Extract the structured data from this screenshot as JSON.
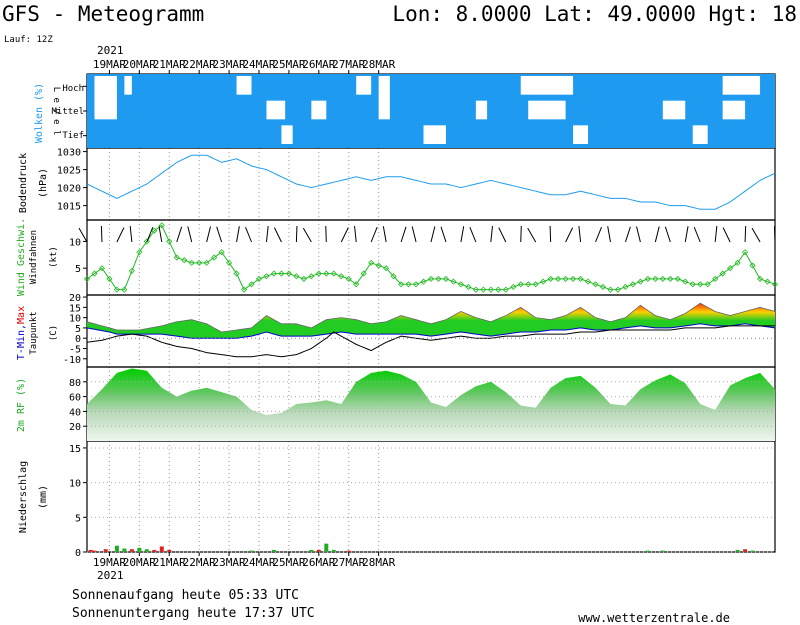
{
  "header": {
    "title": "GFS - Meteogramm",
    "location": "Lon: 8.0000 Lat: 49.0000 Hgt: 18",
    "run": "Lauf: 12Z"
  },
  "dates": {
    "year": "2021",
    "labels": [
      "19MAR",
      "20MAR",
      "21MAR",
      "22MAR",
      "23MAR",
      "24MAR",
      "25MAR",
      "26MAR",
      "27MAR",
      "28MAR"
    ]
  },
  "panels": {
    "clouds": {
      "label": "Wolken (%)",
      "level_word": "L e v e l",
      "levels": [
        "Hoch",
        "Mittel",
        "Tief"
      ]
    },
    "pressure": {
      "label": "Bodendruck",
      "unit": "(hPa)"
    },
    "wind": {
      "label": "Wind Geschwi.",
      "sub": "Windfahnen",
      "unit": "(kt)"
    },
    "temp": {
      "label_tmin": "T-Min,",
      "label_max": "Max",
      "sub": "Taupunkt",
      "unit": "(C)"
    },
    "rh": {
      "label": "2m RF (%)"
    },
    "precip": {
      "label": "Niederschlag",
      "unit": "(mm)"
    }
  },
  "footer": {
    "sunrise": "Sonnenaufgang heute 05:33 UTC",
    "sunset": "Sonnenuntergang heute 17:37 UTC",
    "site": "www.wetterzentrale.de"
  },
  "colors": {
    "cloud_fill": "#1E9BF0",
    "pressure_line": "#1E9BF0",
    "wind_line": "#22BB22",
    "rh_top": "#00C800",
    "rh_bottom": "#E8F4E8",
    "temp_low": "#00C800",
    "temp_mid": "#FFD700",
    "temp_high": "#FF4000",
    "tmin_line": "#0000CC",
    "dew_line": "#000000",
    "precip_green": "#22AA22",
    "precip_red": "#DD2222"
  },
  "chart_data": {
    "type": "line",
    "x_start": "2021-03-18 18Z",
    "x_end": "2021-03-28 18Z",
    "x_step_hours": 3,
    "pressure": {
      "ylabel": "Bodendruck (hPa)",
      "ylim": [
        1011,
        1031
      ],
      "ticks": [
        1015,
        1020,
        1025,
        1030
      ],
      "keys": [
        [
          0,
          1021
        ],
        [
          4,
          1019
        ],
        [
          8,
          1017
        ],
        [
          12,
          1019
        ],
        [
          16,
          1021
        ],
        [
          20,
          1024
        ],
        [
          24,
          1027
        ],
        [
          28,
          1029
        ],
        [
          32,
          1029
        ],
        [
          36,
          1027
        ],
        [
          40,
          1028
        ],
        [
          44,
          1026
        ],
        [
          48,
          1025
        ],
        [
          52,
          1023
        ],
        [
          56,
          1021
        ],
        [
          60,
          1020
        ],
        [
          64,
          1021
        ],
        [
          68,
          1022
        ],
        [
          72,
          1023
        ],
        [
          76,
          1022
        ],
        [
          80,
          1023
        ],
        [
          84,
          1023
        ],
        [
          88,
          1022
        ],
        [
          92,
          1021
        ],
        [
          96,
          1021
        ],
        [
          100,
          1020
        ],
        [
          104,
          1021
        ],
        [
          108,
          1022
        ],
        [
          112,
          1021
        ],
        [
          116,
          1020
        ],
        [
          120,
          1019
        ],
        [
          124,
          1018
        ],
        [
          128,
          1018
        ],
        [
          132,
          1019
        ],
        [
          136,
          1018
        ],
        [
          140,
          1017
        ],
        [
          144,
          1017
        ],
        [
          148,
          1016
        ],
        [
          152,
          1016
        ],
        [
          156,
          1015
        ],
        [
          160,
          1015
        ],
        [
          164,
          1014
        ],
        [
          168,
          1014
        ],
        [
          172,
          1016
        ],
        [
          176,
          1019
        ],
        [
          180,
          1022
        ],
        [
          184,
          1024
        ]
      ]
    },
    "wind": {
      "ylabel": "Wind Geschwi. (kt)",
      "ylim": [
        0,
        14
      ],
      "ticks": [
        5,
        10
      ],
      "keys": [
        [
          0,
          3
        ],
        [
          4,
          5
        ],
        [
          8,
          1
        ],
        [
          10,
          1
        ],
        [
          14,
          8
        ],
        [
          18,
          12
        ],
        [
          20,
          13
        ],
        [
          24,
          7
        ],
        [
          28,
          6
        ],
        [
          32,
          6
        ],
        [
          36,
          8
        ],
        [
          40,
          4
        ],
        [
          42,
          1
        ],
        [
          46,
          3
        ],
        [
          50,
          4
        ],
        [
          54,
          4
        ],
        [
          58,
          3
        ],
        [
          62,
          4
        ],
        [
          66,
          4
        ],
        [
          70,
          3
        ],
        [
          72,
          2
        ],
        [
          76,
          6
        ],
        [
          80,
          5
        ],
        [
          84,
          2
        ],
        [
          88,
          2
        ],
        [
          92,
          3
        ],
        [
          96,
          3
        ],
        [
          100,
          2
        ],
        [
          104,
          1
        ],
        [
          108,
          1
        ],
        [
          112,
          1
        ],
        [
          116,
          2
        ],
        [
          120,
          2
        ],
        [
          124,
          3
        ],
        [
          128,
          3
        ],
        [
          132,
          3
        ],
        [
          136,
          2
        ],
        [
          140,
          1
        ],
        [
          142,
          1
        ],
        [
          146,
          2
        ],
        [
          150,
          3
        ],
        [
          154,
          3
        ],
        [
          158,
          3
        ],
        [
          162,
          2
        ],
        [
          166,
          2
        ],
        [
          170,
          4
        ],
        [
          174,
          6
        ],
        [
          176,
          8
        ],
        [
          180,
          3
        ],
        [
          184,
          2
        ]
      ]
    },
    "temperature": {
      "ylabel": "T-Min, Max Taupunkt (C)",
      "ylim": [
        -14,
        21
      ],
      "ticks": [
        -10,
        -5,
        0,
        5,
        10,
        15,
        20
      ],
      "max_keys": [
        [
          0,
          8
        ],
        [
          6,
          5
        ],
        [
          8,
          4
        ],
        [
          14,
          4
        ],
        [
          20,
          6
        ],
        [
          24,
          8
        ],
        [
          28,
          9
        ],
        [
          32,
          7
        ],
        [
          36,
          3
        ],
        [
          40,
          4
        ],
        [
          44,
          5
        ],
        [
          48,
          11
        ],
        [
          52,
          7
        ],
        [
          56,
          7
        ],
        [
          60,
          5
        ],
        [
          64,
          9
        ],
        [
          68,
          10
        ],
        [
          72,
          9
        ],
        [
          76,
          7
        ],
        [
          80,
          8
        ],
        [
          84,
          11
        ],
        [
          88,
          9
        ],
        [
          92,
          7
        ],
        [
          96,
          9
        ],
        [
          100,
          13
        ],
        [
          104,
          10
        ],
        [
          108,
          8
        ],
        [
          112,
          11
        ],
        [
          116,
          15
        ],
        [
          120,
          10
        ],
        [
          124,
          9
        ],
        [
          128,
          11
        ],
        [
          132,
          15
        ],
        [
          136,
          10
        ],
        [
          140,
          8
        ],
        [
          144,
          10
        ],
        [
          148,
          16
        ],
        [
          152,
          11
        ],
        [
          156,
          9
        ],
        [
          160,
          12
        ],
        [
          164,
          17
        ],
        [
          168,
          13
        ],
        [
          172,
          11
        ],
        [
          176,
          13
        ],
        [
          180,
          15
        ],
        [
          184,
          13
        ]
      ],
      "tmin_keys": [
        [
          0,
          5
        ],
        [
          6,
          3
        ],
        [
          8,
          2
        ],
        [
          14,
          2
        ],
        [
          20,
          2
        ],
        [
          24,
          1
        ],
        [
          28,
          0
        ],
        [
          32,
          0
        ],
        [
          36,
          0
        ],
        [
          40,
          0
        ],
        [
          44,
          1
        ],
        [
          48,
          3
        ],
        [
          52,
          1
        ],
        [
          56,
          1
        ],
        [
          60,
          1
        ],
        [
          64,
          2
        ],
        [
          68,
          3
        ],
        [
          72,
          2
        ],
        [
          76,
          2
        ],
        [
          80,
          2
        ],
        [
          84,
          2
        ],
        [
          88,
          2
        ],
        [
          92,
          1
        ],
        [
          96,
          2
        ],
        [
          100,
          3
        ],
        [
          104,
          2
        ],
        [
          108,
          1
        ],
        [
          112,
          2
        ],
        [
          116,
          3
        ],
        [
          120,
          3
        ],
        [
          124,
          4
        ],
        [
          128,
          4
        ],
        [
          132,
          5
        ],
        [
          136,
          4
        ],
        [
          140,
          4
        ],
        [
          144,
          5
        ],
        [
          148,
          6
        ],
        [
          152,
          5
        ],
        [
          156,
          5
        ],
        [
          160,
          6
        ],
        [
          164,
          7
        ],
        [
          168,
          6
        ],
        [
          172,
          6
        ],
        [
          176,
          7
        ],
        [
          180,
          6
        ],
        [
          184,
          5
        ]
      ],
      "dew_keys": [
        [
          0,
          -2
        ],
        [
          4,
          -1
        ],
        [
          8,
          1
        ],
        [
          12,
          2
        ],
        [
          16,
          1
        ],
        [
          20,
          -2
        ],
        [
          24,
          -4
        ],
        [
          28,
          -5
        ],
        [
          32,
          -7
        ],
        [
          36,
          -8
        ],
        [
          40,
          -9
        ],
        [
          44,
          -9
        ],
        [
          48,
          -8
        ],
        [
          52,
          -9
        ],
        [
          56,
          -8
        ],
        [
          60,
          -5
        ],
        [
          64,
          0
        ],
        [
          66,
          3
        ],
        [
          68,
          1
        ],
        [
          72,
          -3
        ],
        [
          76,
          -6
        ],
        [
          80,
          -2
        ],
        [
          84,
          1
        ],
        [
          88,
          0
        ],
        [
          92,
          -1
        ],
        [
          96,
          0
        ],
        [
          100,
          1
        ],
        [
          104,
          0
        ],
        [
          108,
          0
        ],
        [
          112,
          1
        ],
        [
          116,
          1
        ],
        [
          120,
          2
        ],
        [
          124,
          2
        ],
        [
          128,
          2
        ],
        [
          132,
          3
        ],
        [
          136,
          3
        ],
        [
          140,
          4
        ],
        [
          144,
          4
        ],
        [
          148,
          4
        ],
        [
          152,
          4
        ],
        [
          156,
          4
        ],
        [
          160,
          5
        ],
        [
          164,
          5
        ],
        [
          168,
          5
        ],
        [
          172,
          6
        ],
        [
          176,
          6
        ],
        [
          180,
          6
        ],
        [
          184,
          6
        ]
      ]
    },
    "humidity": {
      "ylabel": "2m RF (%)",
      "ylim": [
        0,
        100
      ],
      "ticks": [
        20,
        40,
        60,
        80
      ],
      "keys": [
        [
          0,
          50
        ],
        [
          4,
          70
        ],
        [
          8,
          92
        ],
        [
          12,
          98
        ],
        [
          16,
          95
        ],
        [
          20,
          72
        ],
        [
          24,
          60
        ],
        [
          28,
          68
        ],
        [
          32,
          72
        ],
        [
          36,
          66
        ],
        [
          40,
          60
        ],
        [
          44,
          42
        ],
        [
          48,
          35
        ],
        [
          52,
          38
        ],
        [
          56,
          50
        ],
        [
          60,
          52
        ],
        [
          64,
          55
        ],
        [
          68,
          50
        ],
        [
          72,
          80
        ],
        [
          76,
          92
        ],
        [
          80,
          95
        ],
        [
          84,
          90
        ],
        [
          88,
          80
        ],
        [
          92,
          52
        ],
        [
          96,
          46
        ],
        [
          100,
          62
        ],
        [
          104,
          74
        ],
        [
          108,
          80
        ],
        [
          112,
          66
        ],
        [
          116,
          48
        ],
        [
          120,
          45
        ],
        [
          124,
          72
        ],
        [
          128,
          85
        ],
        [
          132,
          88
        ],
        [
          136,
          72
        ],
        [
          140,
          50
        ],
        [
          144,
          48
        ],
        [
          148,
          70
        ],
        [
          152,
          82
        ],
        [
          156,
          90
        ],
        [
          160,
          78
        ],
        [
          164,
          50
        ],
        [
          168,
          42
        ],
        [
          172,
          75
        ],
        [
          176,
          85
        ],
        [
          180,
          92
        ],
        [
          184,
          70
        ],
        [
          188,
          52
        ]
      ]
    },
    "precipitation": {
      "ylabel": "Niederschlag (mm)",
      "ylim": [
        0,
        16
      ],
      "ticks": [
        5,
        10,
        15
      ],
      "bars": [
        [
          1,
          0.3,
          "red"
        ],
        [
          2,
          0.2,
          "red"
        ],
        [
          5,
          0.4,
          "red"
        ],
        [
          8,
          0.9,
          "green"
        ],
        [
          10,
          0.5,
          "green"
        ],
        [
          12,
          0.4,
          "red"
        ],
        [
          14,
          0.6,
          "green"
        ],
        [
          16,
          0.4,
          "green"
        ],
        [
          18,
          0.3,
          "red"
        ],
        [
          20,
          0.8,
          "red"
        ],
        [
          22,
          0.3,
          "red"
        ],
        [
          44,
          0.2,
          "green"
        ],
        [
          50,
          0.3,
          "green"
        ],
        [
          60,
          0.3,
          "green"
        ],
        [
          62,
          0.3,
          "red"
        ],
        [
          64,
          1.2,
          "green"
        ],
        [
          66,
          0.3,
          "green"
        ],
        [
          70,
          0.2,
          "red"
        ],
        [
          150,
          0.2,
          "green"
        ],
        [
          154,
          0.2,
          "green"
        ],
        [
          174,
          0.3,
          "green"
        ],
        [
          176,
          0.4,
          "red"
        ],
        [
          178,
          0.2,
          "green"
        ]
      ]
    },
    "clouds": {
      "levels": [
        "Hoch",
        "Mittel",
        "Tief"
      ],
      "clear_patches": [
        [
          2,
          0,
          6,
          1
        ],
        [
          10,
          0,
          2,
          0
        ],
        [
          40,
          0,
          4,
          0
        ],
        [
          48,
          1,
          5,
          1
        ],
        [
          52,
          2,
          3,
          2
        ],
        [
          60,
          1,
          4,
          1
        ],
        [
          72,
          0,
          4,
          0
        ],
        [
          78,
          0,
          3,
          1
        ],
        [
          90,
          2,
          6,
          2
        ],
        [
          104,
          1,
          3,
          1
        ],
        [
          116,
          0,
          14,
          0
        ],
        [
          118,
          1,
          10,
          1
        ],
        [
          130,
          2,
          4,
          2
        ],
        [
          154,
          1,
          6,
          1
        ],
        [
          162,
          2,
          4,
          2
        ],
        [
          170,
          0,
          10,
          0
        ],
        [
          170,
          1,
          6,
          1
        ]
      ]
    }
  }
}
